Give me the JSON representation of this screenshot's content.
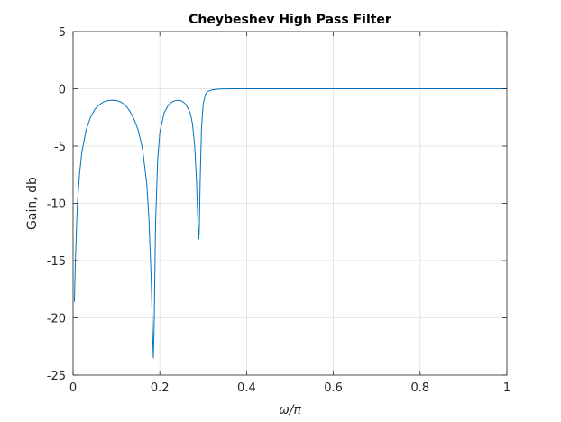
{
  "chart_data": {
    "type": "line",
    "title": "Cheybeshev High Pass Filter",
    "xlabel": "ω/π",
    "ylabel": "Gain, db",
    "xlim": [
      0,
      1
    ],
    "ylim": [
      -25,
      5
    ],
    "x_ticks": [
      0,
      0.2,
      0.4,
      0.6,
      0.8,
      1
    ],
    "x_tick_labels": [
      "0",
      "0.2",
      "0.4",
      "0.6",
      "0.8",
      "1"
    ],
    "y_ticks": [
      5,
      0,
      -5,
      -10,
      -15,
      -20,
      -25
    ],
    "y_tick_labels": [
      "5",
      "0",
      "-5",
      "-10",
      "-15",
      "-20",
      "-25"
    ],
    "grid": true,
    "line_color": "#0072bd",
    "series": [
      {
        "x": [
          0.003,
          0.005,
          0.008,
          0.01,
          0.015,
          0.02,
          0.03,
          0.04,
          0.05,
          0.06,
          0.07,
          0.08,
          0.09,
          0.1,
          0.11,
          0.12,
          0.13,
          0.14,
          0.15,
          0.16,
          0.17,
          0.175,
          0.18,
          0.183,
          0.185,
          0.187,
          0.19,
          0.195,
          0.2,
          0.21,
          0.22,
          0.23,
          0.24,
          0.25,
          0.26,
          0.27,
          0.275,
          0.28,
          0.284,
          0.287,
          0.289,
          0.29,
          0.291,
          0.293,
          0.296,
          0.3,
          0.305,
          0.31,
          0.32,
          0.33,
          0.34,
          0.36,
          0.4,
          0.5,
          0.6,
          0.7,
          0.8,
          0.9,
          1.0
        ],
        "y": [
          -18.6,
          -15.5,
          -12.0,
          -10.0,
          -7.4,
          -5.6,
          -3.6,
          -2.5,
          -1.8,
          -1.4,
          -1.15,
          -1.03,
          -1.0,
          -1.02,
          -1.15,
          -1.4,
          -1.9,
          -2.6,
          -3.6,
          -5.2,
          -8.3,
          -11.5,
          -16.5,
          -21.0,
          -23.5,
          -20.5,
          -12.0,
          -6.2,
          -3.8,
          -2.1,
          -1.4,
          -1.1,
          -1.0,
          -1.05,
          -1.35,
          -2.1,
          -3.0,
          -4.8,
          -7.6,
          -10.8,
          -12.7,
          -13.1,
          -12.2,
          -8.0,
          -3.5,
          -1.3,
          -0.5,
          -0.25,
          -0.1,
          -0.05,
          -0.02,
          0.0,
          0.0,
          0.0,
          0.0,
          0.0,
          0.0,
          0.0,
          0.0
        ]
      }
    ]
  }
}
